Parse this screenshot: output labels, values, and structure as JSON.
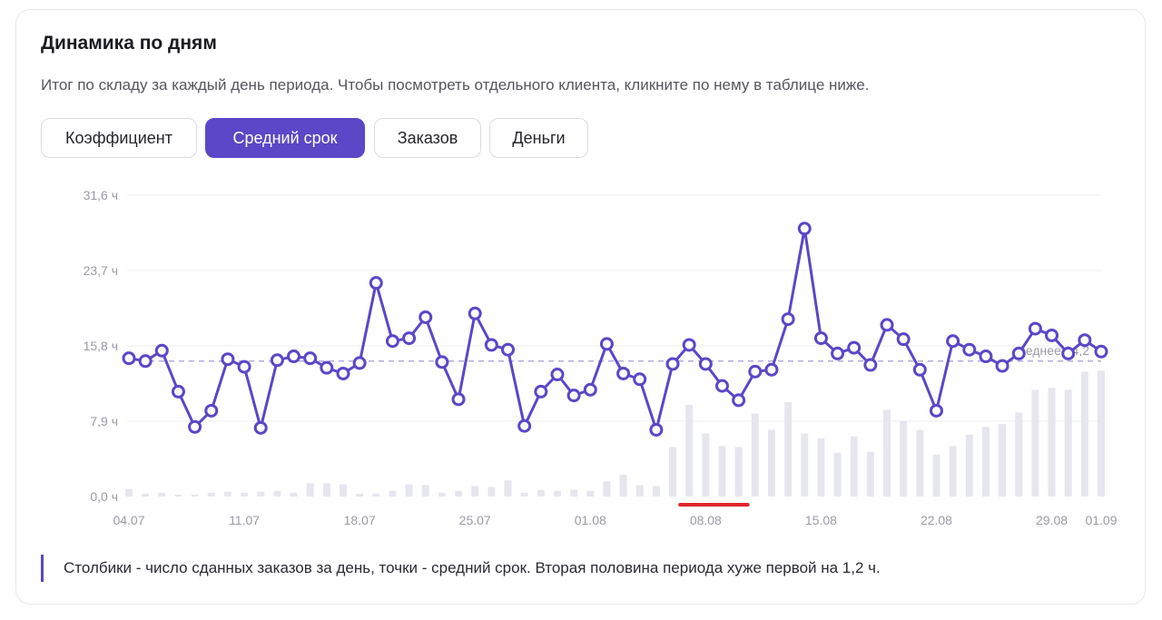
{
  "header": {
    "title": "Динамика по дням",
    "subtitle": "Итог по складу за каждый день периода. Чтобы посмотреть отдельного клиента, кликните по нему в таблице ниже."
  },
  "tabs": [
    {
      "label": "Коэффициент",
      "active": false
    },
    {
      "label": "Средний срок",
      "active": true
    },
    {
      "label": "Заказов",
      "active": false
    },
    {
      "label": "Деньги",
      "active": false
    }
  ],
  "colors": {
    "accent": "#5b47c7",
    "bars": "#e6e6ef",
    "grid": "#ececf1",
    "average_line": "#b3acdd",
    "highlight": "#e0262b"
  },
  "chart_data": {
    "type": "line",
    "ylim": [
      0,
      31.6
    ],
    "y_ticks": [
      "0,0 ч",
      "7,9 ч",
      "15,8 ч",
      "23,7 ч",
      "31,6 ч"
    ],
    "y_tick_values": [
      0,
      7.9,
      15.8,
      23.7,
      31.6
    ],
    "x_tick_labels": [
      {
        "index": 0,
        "label": "04.07"
      },
      {
        "index": 7,
        "label": "11.07"
      },
      {
        "index": 14,
        "label": "18.07"
      },
      {
        "index": 21,
        "label": "25.07"
      },
      {
        "index": 28,
        "label": "01.08"
      },
      {
        "index": 35,
        "label": "08.08"
      },
      {
        "index": 42,
        "label": "15.08"
      },
      {
        "index": 49,
        "label": "22.08"
      },
      {
        "index": 56,
        "label": "29.08"
      },
      {
        "index": 59,
        "label": "01.09"
      }
    ],
    "average": {
      "value": 14.2,
      "label": "среднее 14,2"
    },
    "highlight_range": [
      34,
      37
    ],
    "series": [
      {
        "kind": "line",
        "values": [
          14.5,
          14.2,
          15.3,
          11.0,
          7.3,
          9.0,
          14.4,
          13.6,
          7.2,
          14.3,
          14.7,
          14.5,
          13.5,
          12.9,
          14.0,
          22.4,
          16.3,
          16.6,
          18.8,
          14.1,
          10.2,
          19.2,
          15.9,
          15.4,
          7.4,
          11.0,
          12.8,
          10.6,
          11.2,
          16.0,
          12.9,
          12.3,
          7.0,
          13.9,
          15.9,
          13.9,
          11.6,
          10.1,
          13.1,
          13.3,
          18.6,
          28.1,
          16.6,
          15.0,
          15.6,
          13.8,
          18.0,
          16.5,
          13.3,
          9.0,
          16.3,
          15.4,
          14.7,
          13.7,
          15.0,
          17.6,
          16.9,
          15.0,
          16.4,
          15.2
        ]
      },
      {
        "kind": "bar",
        "values": [
          0.8,
          0.3,
          0.4,
          0.2,
          0.2,
          0.4,
          0.5,
          0.4,
          0.5,
          0.6,
          0.4,
          1.4,
          1.4,
          1.3,
          0.3,
          0.3,
          0.6,
          1.3,
          1.2,
          0.4,
          0.6,
          1.1,
          1.0,
          1.7,
          0.4,
          0.7,
          0.6,
          0.7,
          0.6,
          1.6,
          2.3,
          1.2,
          1.1,
          5.2,
          9.6,
          6.6,
          5.3,
          5.2,
          8.7,
          7.0,
          9.9,
          6.6,
          6.1,
          4.6,
          6.3,
          4.7,
          9.1,
          7.9,
          7.0,
          4.4,
          5.3,
          6.5,
          7.3,
          7.6,
          8.8,
          11.2,
          11.4,
          11.2,
          13.1,
          13.2
        ]
      }
    ]
  },
  "note": {
    "text": "Столбики - число сданных заказов за день, точки - средний срок. Вторая половина периода хуже первой на 1,2 ч."
  }
}
